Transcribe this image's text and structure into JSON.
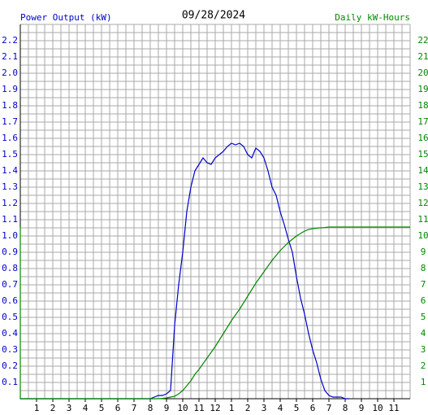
{
  "chart_data": {
    "type": "line",
    "title": "09/28/2024",
    "y_label": "Power Output (kW)",
    "y2_label": "Daily kW-Hours",
    "x": [
      0,
      0,
      8,
      8.25,
      8.5,
      8.75,
      9,
      9.25,
      9.5,
      9.75,
      10,
      10.25,
      10.5,
      10.75,
      11,
      11.25,
      11.5,
      11.75,
      12,
      12.25,
      12.5,
      12.75,
      13,
      13.25,
      13.5,
      13.75,
      14,
      14.25,
      14.5,
      14.75,
      15,
      15.25,
      15.5,
      15.75,
      16,
      16.25,
      16.5,
      16.75,
      17,
      17.25,
      17.5,
      17.75,
      18,
      18.25,
      18.5,
      18.75,
      19,
      19.25,
      19.5,
      19.75,
      20,
      20.25,
      24
    ],
    "series": [
      {
        "color": "#0000cc",
        "values": [
          0,
          0,
          0,
          0.01,
          0.02,
          0.02,
          0.03,
          0.05,
          0.45,
          0.7,
          0.9,
          1.15,
          1.3,
          1.4,
          1.44,
          1.48,
          1.45,
          1.44,
          1.48,
          1.5,
          1.52,
          1.55,
          1.57,
          1.56,
          1.57,
          1.55,
          1.5,
          1.48,
          1.54,
          1.52,
          1.48,
          1.4,
          1.3,
          1.25,
          1.15,
          1.07,
          0.98,
          0.9,
          0.75,
          0.62,
          0.52,
          0.4,
          0.3,
          0.22,
          0.12,
          0.05,
          0.02,
          0.01,
          0.01,
          0.01,
          0,
          0,
          null
        ]
      },
      {
        "color": "#008800",
        "axis": "y2",
        "values": [
          10.55,
          0,
          0,
          0,
          0,
          0.02,
          0.05,
          0.1,
          0.15,
          0.3,
          0.5,
          0.8,
          1.1,
          1.5,
          1.8,
          2.15,
          2.5,
          2.85,
          3.2,
          3.6,
          4.0,
          4.4,
          4.8,
          5.15,
          5.5,
          5.9,
          6.3,
          6.7,
          7.1,
          7.45,
          7.8,
          8.15,
          8.5,
          8.8,
          9.1,
          9.35,
          9.6,
          9.8,
          10.0,
          10.15,
          10.3,
          10.4,
          10.45,
          10.48,
          10.5,
          10.52,
          10.55,
          10.55,
          10.55,
          10.55,
          10.55,
          10.55,
          10.55
        ]
      }
    ],
    "xlim": [
      0,
      24
    ],
    "xticks": [
      1,
      2,
      3,
      4,
      5,
      6,
      7,
      8,
      9,
      10,
      11,
      12,
      {
        "value": 13,
        "label": "1"
      },
      {
        "value": 14,
        "label": "2"
      },
      {
        "value": 15,
        "label": "3"
      },
      {
        "value": 16,
        "label": "4"
      },
      {
        "value": 17,
        "label": "5"
      },
      {
        "value": 18,
        "label": "6"
      },
      {
        "value": 19,
        "label": "7"
      },
      {
        "value": 20,
        "label": "8"
      },
      {
        "value": 21,
        "label": "9"
      },
      {
        "value": 22,
        "label": "10"
      },
      {
        "value": 23,
        "label": "11"
      }
    ],
    "ylim": [
      0,
      2.3
    ],
    "yticks": [
      0.1,
      0.2,
      0.3,
      0.4,
      0.5,
      0.6,
      0.7,
      0.8,
      0.9,
      {
        "value": 1,
        "label": "1.0"
      },
      1.1,
      1.2,
      1.3,
      1.4,
      1.5,
      1.6,
      1.7,
      1.8,
      1.9,
      {
        "value": 2,
        "label": "2.0"
      },
      2.1,
      2.2
    ],
    "y2lim": [
      0,
      23
    ],
    "y2ticks": [
      1,
      2,
      3,
      4,
      5,
      6,
      7,
      8,
      9,
      10,
      11,
      12,
      13,
      14,
      15,
      16,
      17,
      18,
      19,
      20,
      21,
      22
    ],
    "grid": true
  }
}
